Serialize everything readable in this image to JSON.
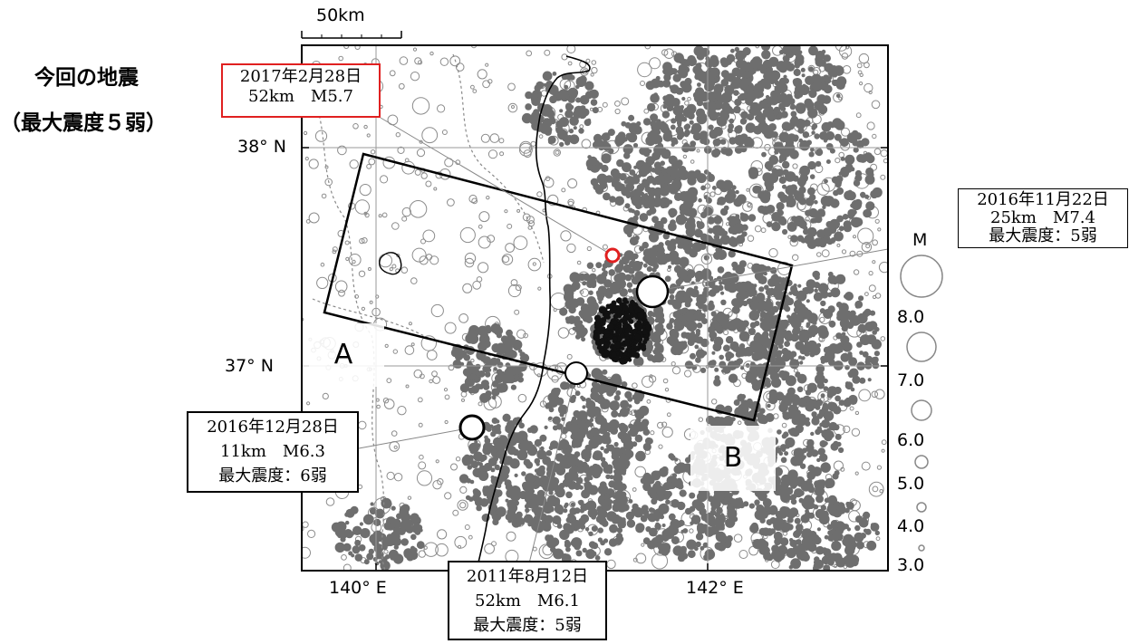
{
  "headline": {
    "line1": "今回の地震",
    "line2": "（最大震度５弱）"
  },
  "scale_bar": {
    "label": "50km"
  },
  "axes": {
    "lat_38": "38° N",
    "lat_37": "37° N",
    "lon_140": "140° E",
    "lon_142": "142° E"
  },
  "regions": {
    "a": "A",
    "b": "B"
  },
  "events": {
    "current": {
      "date": "2017年2月28日",
      "depth_mag": "52km　M5.7"
    },
    "ev_2016_11_22": {
      "date": "2016年11月22日",
      "depth_mag": "25km　M7.4",
      "intensity": "最大震度：5弱"
    },
    "ev_2016_12_28": {
      "date": "2016年12月28日",
      "depth_mag": "11km　M6.3",
      "intensity": "最大震度：6弱"
    },
    "ev_2011_08_12": {
      "date": "2011年8月12日",
      "depth_mag": "52km　M6.1",
      "intensity": "最大震度：5弱"
    }
  },
  "legend": {
    "title": "M",
    "magnitudes": [
      "8.0",
      "7.0",
      "6.0",
      "5.0",
      "4.0",
      "3.0"
    ]
  },
  "colors": {
    "current_event": "#e02020",
    "cluster": "#6e6e6e",
    "dense_cluster": "#111111",
    "frame": "#000000"
  }
}
